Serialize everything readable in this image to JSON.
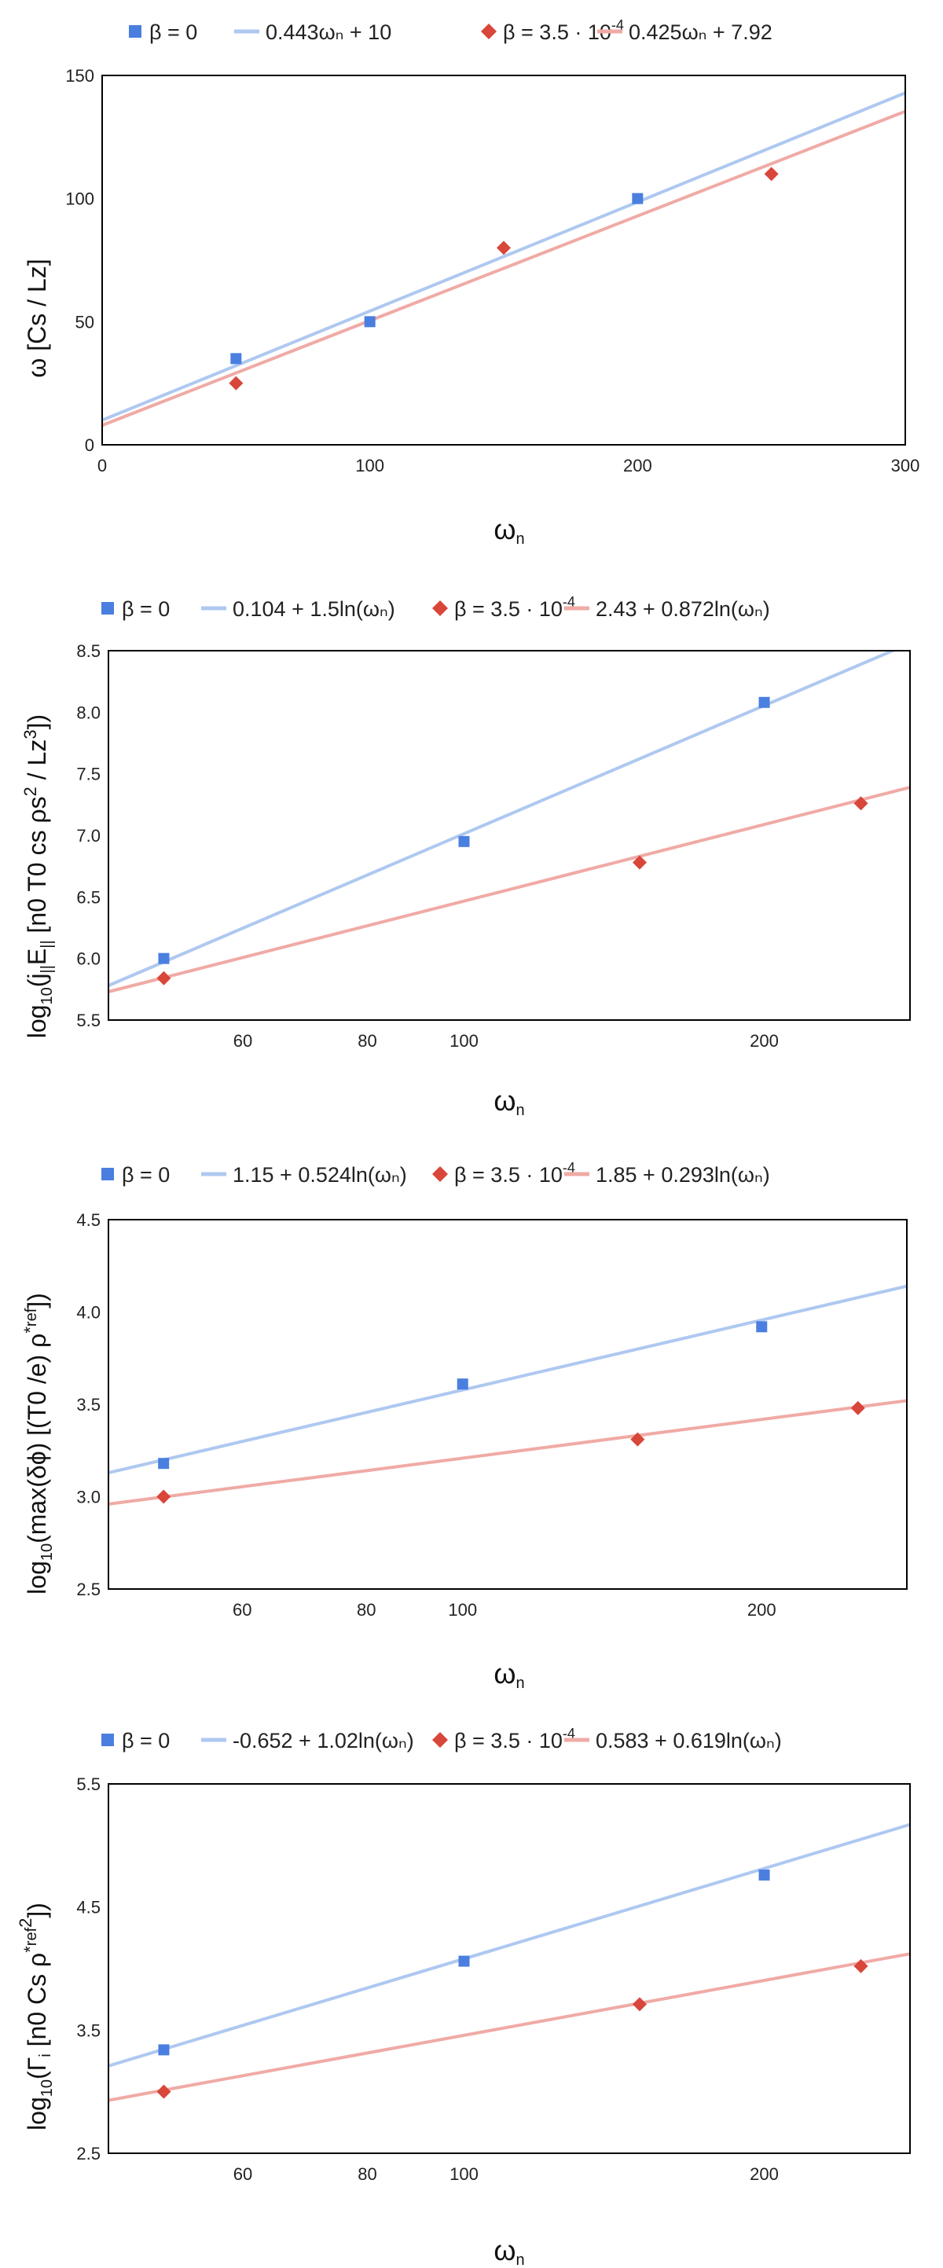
{
  "chart_data": [
    {
      "type": "scatter",
      "title": "",
      "xlabel": "ωn",
      "ylabel": "ω [Cs / Lz]",
      "xscale": "linear",
      "xlim": [
        0,
        300
      ],
      "ylim": [
        0,
        150
      ],
      "xticks": [
        0,
        100,
        200,
        300
      ],
      "yticks": [
        0,
        50,
        100,
        150
      ],
      "grid": false,
      "legend_position": "top",
      "series": [
        {
          "name": "β = 0",
          "kind": "points",
          "marker": "square",
          "color": "#4a7fe0",
          "x": [
            50,
            100,
            200
          ],
          "y": [
            35,
            50,
            100
          ]
        },
        {
          "name": "0.443ωₙ + 10",
          "kind": "trendline",
          "color": "#aec8f0",
          "x": [
            0,
            300
          ],
          "y": [
            10,
            142.9
          ]
        },
        {
          "name": "β = 3.5 · 10",
          "name_exponent": "-4",
          "kind": "points",
          "marker": "diamond",
          "color": "#d9463a",
          "x": [
            50,
            150,
            250
          ],
          "y": [
            25,
            80,
            110
          ]
        },
        {
          "name": "0.425ωₙ + 7.92",
          "kind": "trendline",
          "color": "#f0aaa5",
          "x": [
            0,
            300
          ],
          "y": [
            7.92,
            135.42
          ]
        }
      ]
    },
    {
      "type": "scatter",
      "title": "",
      "xlabel": "ωn",
      "ylabel": "log10(j‖E‖ [n0 T0 cs ρs² / Lz³])",
      "xscale": "log",
      "xlim": [
        44,
        280
      ],
      "ylim": [
        5.5,
        8.5
      ],
      "xticks": [
        60,
        80,
        100,
        200
      ],
      "yticks": [
        5.5,
        6.0,
        6.5,
        7.0,
        7.5,
        8.0,
        8.5
      ],
      "grid": false,
      "legend_position": "top",
      "series": [
        {
          "name": "β = 0",
          "kind": "points",
          "marker": "square",
          "color": "#4a7fe0",
          "x": [
            50,
            100,
            200
          ],
          "y": [
            6.0,
            6.95,
            8.08
          ]
        },
        {
          "name": "0.104 + 1.5ln(ωₙ)",
          "kind": "trendline",
          "color": "#aec8f0",
          "x": [
            44,
            280
          ],
          "y": [
            5.78,
            8.56
          ]
        },
        {
          "name": "β = 3.5 · 10",
          "name_exponent": "-4",
          "kind": "points",
          "marker": "diamond",
          "color": "#d9463a",
          "x": [
            50,
            150,
            250
          ],
          "y": [
            5.84,
            6.78,
            7.26
          ]
        },
        {
          "name": "2.43 + 0.872ln(ωₙ)",
          "kind": "trendline",
          "color": "#f0aaa5",
          "x": [
            44,
            280
          ],
          "y": [
            5.73,
            7.39
          ]
        }
      ]
    },
    {
      "type": "scatter",
      "title": "",
      "xlabel": "ωn",
      "ylabel": "log10(max(δϕ) [(T0 /e) ρ*ref])",
      "xscale": "log",
      "xlim": [
        44,
        280
      ],
      "ylim": [
        2.5,
        4.5
      ],
      "xticks": [
        60,
        80,
        100,
        200
      ],
      "yticks": [
        2.5,
        3.0,
        3.5,
        4.0,
        4.5
      ],
      "grid": false,
      "legend_position": "top",
      "series": [
        {
          "name": "β = 0",
          "kind": "points",
          "marker": "square",
          "color": "#4a7fe0",
          "x": [
            50,
            100,
            200
          ],
          "y": [
            3.18,
            3.61,
            3.92
          ]
        },
        {
          "name": "1.15 + 0.524ln(ωₙ)",
          "kind": "trendline",
          "color": "#aec8f0",
          "x": [
            44,
            280
          ],
          "y": [
            3.13,
            4.14
          ]
        },
        {
          "name": "β = 3.5 · 10",
          "name_exponent": "-4",
          "kind": "points",
          "marker": "diamond",
          "color": "#d9463a",
          "x": [
            50,
            150,
            250
          ],
          "y": [
            3.0,
            3.31,
            3.48
          ]
        },
        {
          "name": "1.85 + 0.293ln(ωₙ)",
          "kind": "trendline",
          "color": "#f0aaa5",
          "x": [
            44,
            280
          ],
          "y": [
            2.96,
            3.52
          ]
        }
      ]
    },
    {
      "type": "scatter",
      "title": "",
      "xlabel": "ωn",
      "ylabel": "log10(Γi [n0 Cs ρ*ref²])",
      "xscale": "log",
      "xlim": [
        44,
        280
      ],
      "ylim": [
        2.5,
        5.5
      ],
      "xticks": [
        60,
        80,
        100,
        200
      ],
      "yticks": [
        2.5,
        3.5,
        4.5,
        5.5
      ],
      "grid": false,
      "legend_position": "top",
      "series": [
        {
          "name": "β = 0",
          "kind": "points",
          "marker": "square",
          "color": "#4a7fe0",
          "x": [
            50,
            100,
            200
          ],
          "y": [
            3.34,
            4.06,
            4.76
          ]
        },
        {
          "name": "-0.652 + 1.02ln(ωₙ)",
          "kind": "trendline",
          "color": "#aec8f0",
          "x": [
            44,
            280
          ],
          "y": [
            3.21,
            5.17
          ]
        },
        {
          "name": "β = 3.5 · 10",
          "name_exponent": "-4",
          "kind": "points",
          "marker": "diamond",
          "color": "#d9463a",
          "x": [
            50,
            150,
            250
          ],
          "y": [
            3.0,
            3.71,
            4.02
          ]
        },
        {
          "name": "0.583 + 0.619ln(ωₙ)",
          "kind": "trendline",
          "color": "#f0aaa5",
          "x": [
            44,
            280
          ],
          "y": [
            2.93,
            4.12
          ]
        }
      ]
    }
  ]
}
